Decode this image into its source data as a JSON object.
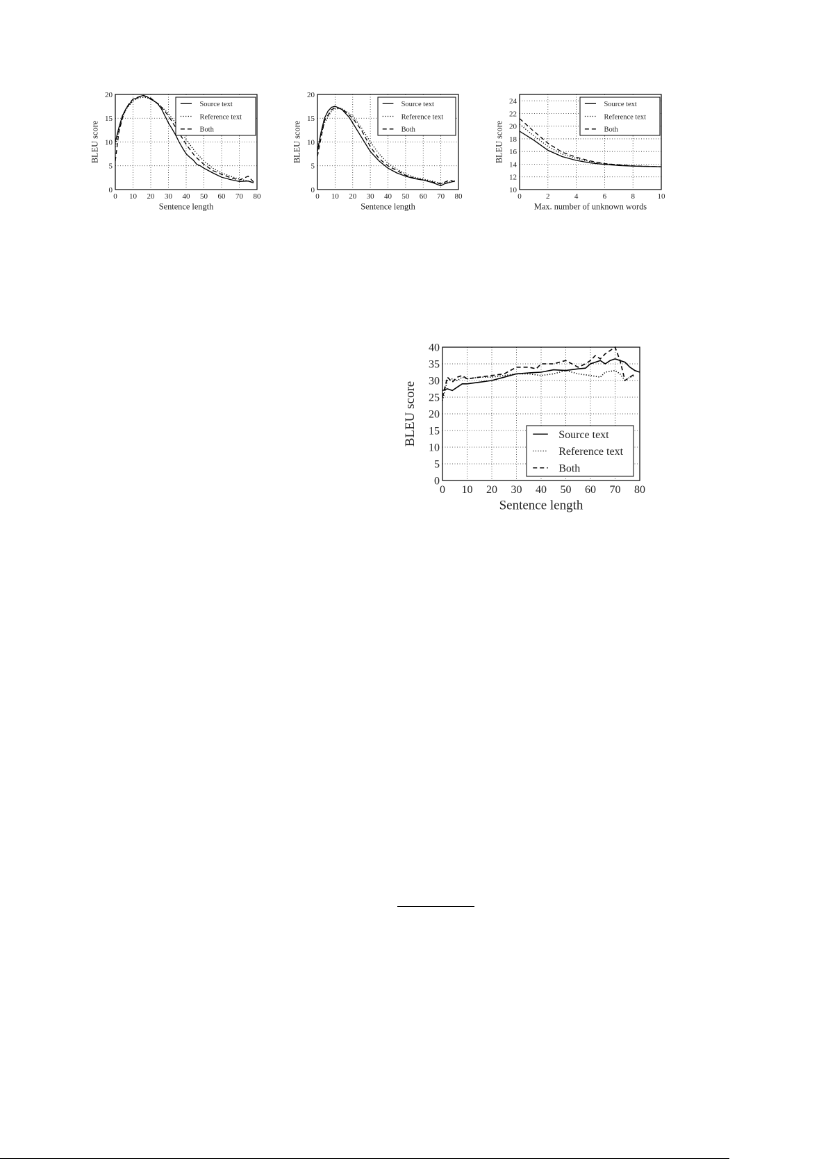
{
  "chart_data": [
    {
      "type": "line",
      "xlabel": "Sentence length",
      "ylabel": "BLEU score",
      "xlim": [
        0,
        80
      ],
      "ylim": [
        0,
        20
      ],
      "xticks": [
        0,
        10,
        20,
        30,
        40,
        50,
        60,
        70,
        80
      ],
      "yticks": [
        0,
        5,
        10,
        15,
        20
      ],
      "grid": true,
      "legend_placement": "top-right",
      "series": [
        {
          "name": "Source text",
          "style": "solid",
          "x": [
            0,
            2,
            4,
            6,
            8,
            10,
            12,
            14,
            16,
            18,
            20,
            22,
            24,
            26,
            28,
            30,
            32,
            34,
            36,
            38,
            40,
            42,
            44,
            46,
            48,
            50,
            55,
            60,
            65,
            70,
            75,
            78
          ],
          "y": [
            10,
            13,
            15.5,
            17,
            18,
            19,
            19.2,
            19.6,
            19.8,
            19.5,
            19,
            18.6,
            18,
            17,
            15.5,
            14,
            12.8,
            11.5,
            10,
            8.7,
            7.5,
            6.8,
            6.2,
            5.3,
            5,
            4.5,
            3.5,
            2.6,
            2.1,
            1.7,
            1.8,
            1.4
          ]
        },
        {
          "name": "Reference text",
          "style": "dotted",
          "x": [
            0,
            2,
            4,
            6,
            8,
            10,
            12,
            14,
            16,
            18,
            20,
            25,
            30,
            35,
            40,
            45,
            50,
            55,
            60,
            65,
            70,
            75,
            78
          ],
          "y": [
            9,
            12.5,
            15,
            16.8,
            17.8,
            18.6,
            19,
            19.3,
            19.4,
            19.3,
            19,
            17.8,
            16,
            13.5,
            10.5,
            8,
            6,
            4.5,
            3.5,
            2.8,
            2.2,
            1.8,
            1.5
          ]
        },
        {
          "name": "Both",
          "style": "dashed",
          "x": [
            0,
            2,
            4,
            6,
            8,
            10,
            12,
            14,
            16,
            18,
            20,
            25,
            30,
            35,
            40,
            45,
            50,
            55,
            60,
            65,
            70,
            75,
            78
          ],
          "y": [
            6,
            12,
            15,
            17,
            18.2,
            19,
            19.3,
            19.6,
            19.7,
            19.5,
            19.2,
            17.8,
            15.5,
            12.5,
            9.5,
            7,
            5.3,
            4,
            3.2,
            2.5,
            2,
            2.8,
            1.6
          ]
        }
      ]
    },
    {
      "type": "line",
      "xlabel": "Sentence length",
      "ylabel": "BLEU score",
      "xlim": [
        0,
        80
      ],
      "ylim": [
        0,
        20
      ],
      "xticks": [
        0,
        10,
        20,
        30,
        40,
        50,
        60,
        70,
        80
      ],
      "yticks": [
        0,
        5,
        10,
        15,
        20
      ],
      "grid": true,
      "legend_placement": "top-right",
      "series": [
        {
          "name": "Source text",
          "style": "solid",
          "x": [
            0,
            2,
            4,
            6,
            8,
            10,
            12,
            14,
            16,
            18,
            20,
            25,
            30,
            35,
            40,
            45,
            50,
            55,
            60,
            65,
            70,
            72,
            75,
            78
          ],
          "y": [
            8,
            12,
            15,
            16.5,
            17.3,
            17.5,
            17.2,
            16.8,
            16,
            15.2,
            14,
            11,
            8,
            6,
            4.5,
            3.5,
            2.8,
            2.3,
            2,
            1.5,
            0.8,
            1.2,
            1.5,
            1.8
          ]
        },
        {
          "name": "Reference text",
          "style": "dotted",
          "x": [
            0,
            4,
            8,
            10,
            14,
            20,
            25,
            30,
            35,
            40,
            45,
            50,
            55,
            60,
            65,
            70,
            78
          ],
          "y": [
            9,
            14,
            16.5,
            17,
            17,
            15.5,
            13,
            10,
            7.5,
            5.5,
            4.3,
            3.3,
            2.6,
            2.2,
            1.8,
            1.3,
            1.8
          ]
        },
        {
          "name": "Both",
          "style": "dashed",
          "x": [
            0,
            4,
            8,
            10,
            14,
            20,
            25,
            30,
            35,
            40,
            45,
            50,
            55,
            60,
            70,
            75,
            78
          ],
          "y": [
            7,
            14.5,
            16.8,
            17.2,
            17,
            15,
            12.5,
            9,
            6.5,
            5,
            4,
            3,
            2.4,
            2,
            1.2,
            2,
            1.6
          ]
        }
      ]
    },
    {
      "type": "line",
      "xlabel": "Max. number of unknown words",
      "ylabel": "BLEU score",
      "xlim": [
        0,
        10
      ],
      "ylim": [
        10,
        25
      ],
      "xticks": [
        0,
        2,
        4,
        6,
        8,
        10
      ],
      "yticks": [
        10,
        12,
        14,
        16,
        18,
        20,
        22,
        24
      ],
      "grid": true,
      "legend_placement": "top-right",
      "series": [
        {
          "name": "Source text",
          "style": "solid",
          "x": [
            0,
            1,
            2,
            3,
            4,
            5,
            6,
            7,
            8,
            9,
            10
          ],
          "y": [
            19.2,
            17.8,
            16.2,
            15.2,
            14.6,
            14.2,
            13.95,
            13.8,
            13.7,
            13.65,
            13.6
          ]
        },
        {
          "name": "Reference text",
          "style": "dotted",
          "x": [
            0,
            1,
            2,
            3,
            4,
            5,
            6,
            7,
            8,
            10
          ],
          "y": [
            20.3,
            18.5,
            16.8,
            15.6,
            14.9,
            14.4,
            14.1,
            13.85,
            13.7,
            13.6
          ]
        },
        {
          "name": "Both",
          "style": "dashed",
          "x": [
            0,
            1,
            2,
            3,
            4,
            5,
            6,
            7,
            8,
            10
          ],
          "y": [
            21.2,
            19.2,
            17.3,
            15.9,
            15.1,
            14.5,
            14.1,
            13.9,
            13.75,
            13.6
          ]
        }
      ]
    },
    {
      "type": "line",
      "xlabel": "Sentence length",
      "ylabel": "BLEU score",
      "xlim": [
        0,
        80
      ],
      "ylim": [
        0,
        40
      ],
      "xticks": [
        0,
        10,
        20,
        30,
        40,
        50,
        60,
        70,
        80
      ],
      "yticks": [
        0,
        5,
        10,
        15,
        20,
        25,
        30,
        35,
        40
      ],
      "grid": true,
      "legend_placement": "lower-right",
      "series": [
        {
          "name": "Source text",
          "style": "solid",
          "x": [
            0,
            2,
            4,
            6,
            8,
            10,
            15,
            20,
            25,
            30,
            35,
            40,
            45,
            50,
            55,
            58,
            60,
            62,
            64,
            66,
            68,
            70,
            72,
            74,
            76,
            78,
            80
          ],
          "y": [
            27,
            27.5,
            27,
            28,
            29,
            29,
            29.5,
            30,
            31,
            32,
            32.3,
            32.5,
            33.2,
            33,
            33.5,
            33.7,
            35,
            35.5,
            36,
            35,
            36,
            36.5,
            36,
            35.5,
            34,
            33,
            32.5
          ]
        },
        {
          "name": "Reference text",
          "style": "dotted",
          "x": [
            0,
            2,
            4,
            6,
            8,
            10,
            15,
            20,
            25,
            30,
            35,
            40,
            45,
            50,
            55,
            60,
            64,
            66,
            70,
            72,
            74,
            76,
            78
          ],
          "y": [
            24,
            30,
            30.5,
            30,
            31,
            30.5,
            31,
            31,
            31.5,
            32,
            32,
            31.5,
            32,
            33,
            32,
            31.5,
            31,
            32.5,
            33,
            32,
            30,
            31,
            31.5
          ]
        },
        {
          "name": "Both",
          "style": "dashed",
          "x": [
            0,
            2,
            4,
            6,
            8,
            10,
            15,
            20,
            25,
            30,
            35,
            38,
            40,
            45,
            50,
            55,
            58,
            60,
            62,
            64,
            66,
            68,
            70,
            72,
            74,
            76,
            78
          ],
          "y": [
            25,
            31,
            29.5,
            31,
            31.5,
            30.5,
            31,
            31.5,
            32,
            34,
            34,
            33.5,
            35,
            35,
            36,
            34,
            35,
            36,
            37.5,
            36.5,
            38,
            39,
            40,
            36,
            30,
            31,
            32
          ]
        }
      ]
    }
  ]
}
